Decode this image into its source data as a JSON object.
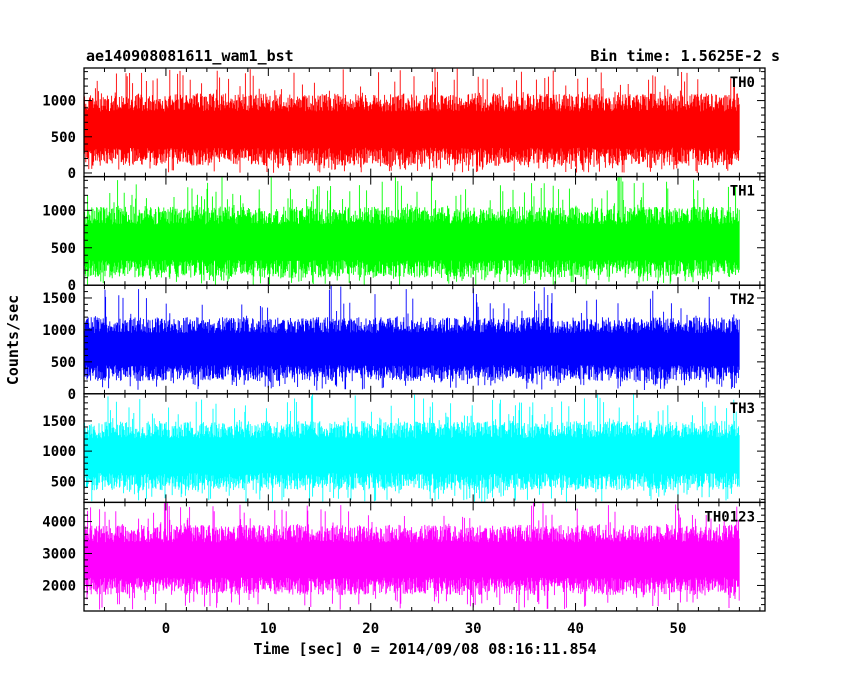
{
  "chart_data": {
    "type": "line",
    "title_left": "ae140908081611_wam1_bst",
    "title_right": "Bin time: 1.5625E-2 s",
    "xlabel": "Time [sec] 0 = 2014/09/08 08:16:11.854",
    "ylabel": "Counts/sec",
    "xlim": [
      -8,
      58.5
    ],
    "x_start": -8,
    "x_end": 56,
    "x_ticks": [
      0,
      10,
      20,
      30,
      40,
      50
    ],
    "x_tick_labels": [
      "0",
      "10",
      "20",
      "30",
      "40",
      "50"
    ],
    "grid": false,
    "panels": [
      {
        "name": "TH0",
        "color": "#ff0000",
        "ylim": [
          -50,
          1450
        ],
        "y_ticks": [
          0,
          500,
          1000
        ],
        "y_tick_labels": [
          "0",
          "500",
          "1000"
        ],
        "typical_range": [
          100,
          1100
        ],
        "peak_range": [
          0,
          1450
        ]
      },
      {
        "name": "TH1",
        "color": "#00ff00",
        "ylim": [
          0,
          1450
        ],
        "y_ticks": [
          0,
          500,
          1000
        ],
        "y_tick_labels": [
          "0",
          "500",
          "1000"
        ],
        "typical_range": [
          100,
          1050
        ],
        "peak_range": [
          0,
          1450
        ]
      },
      {
        "name": "TH2",
        "color": "#0000ff",
        "ylim": [
          0,
          1700
        ],
        "y_ticks": [
          0,
          500,
          1000,
          1500
        ],
        "y_tick_labels": [
          "0",
          "500",
          "1000",
          "1500"
        ],
        "typical_range": [
          200,
          1200
        ],
        "peak_range": [
          50,
          1700
        ]
      },
      {
        "name": "TH3",
        "color": "#00ffff",
        "ylim": [
          150,
          1950
        ],
        "y_ticks": [
          500,
          1000,
          1500
        ],
        "y_tick_labels": [
          "500",
          "1000",
          "1500"
        ],
        "typical_range": [
          350,
          1500
        ],
        "peak_range": [
          150,
          1950
        ]
      },
      {
        "name": "TH0123",
        "color": "#ff00ff",
        "ylim": [
          1200,
          4600
        ],
        "y_ticks": [
          2000,
          3000,
          4000
        ],
        "y_tick_labels": [
          "2000",
          "3000",
          "4000"
        ],
        "typical_range": [
          1700,
          3900
        ],
        "peak_range": [
          1200,
          4600
        ]
      }
    ]
  }
}
